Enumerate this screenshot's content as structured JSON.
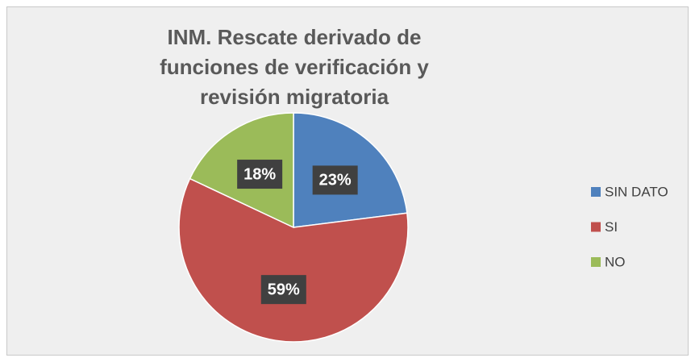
{
  "chart_data": {
    "type": "pie",
    "title": "INM. Rescate derivado de funciones de verificación y revisión migratoria",
    "categories": [
      "SIN DATO",
      "SI",
      "NO"
    ],
    "values": [
      23,
      59,
      18
    ],
    "value_labels": [
      "23%",
      "59%",
      "18%"
    ],
    "colors": [
      "#4f81bd",
      "#c0504d",
      "#9bbb59"
    ],
    "legend": "right"
  }
}
